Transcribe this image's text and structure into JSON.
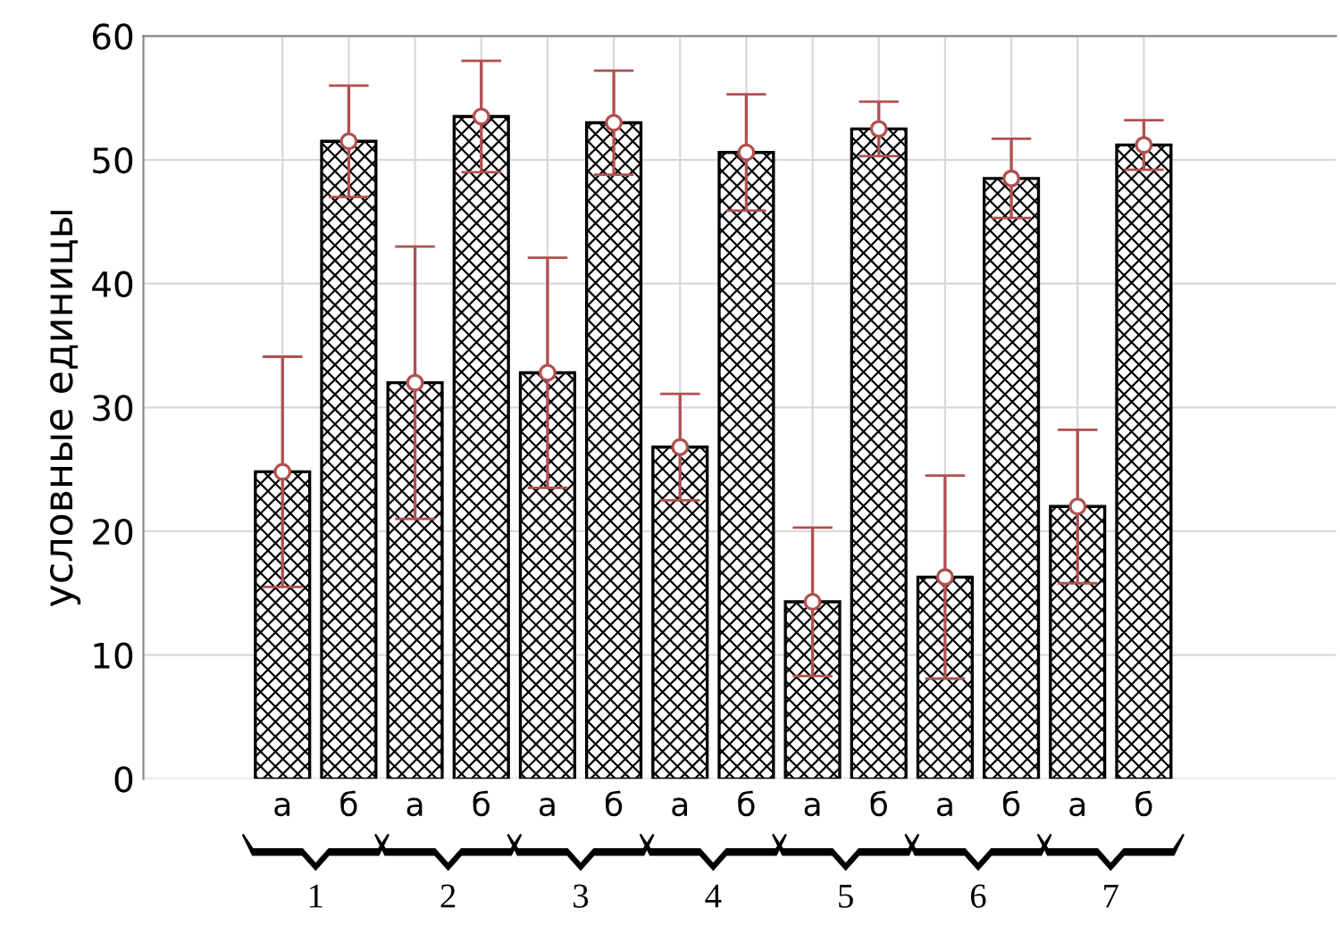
{
  "chart_data": {
    "type": "bar",
    "ylabel": "условные единицы",
    "categories": [
      "а",
      "б",
      "а",
      "б",
      "а",
      "б",
      "а",
      "б",
      "а",
      "б",
      "а",
      "б",
      "а",
      "б"
    ],
    "series": [
      {
        "color": "#000000",
        "values": [
          24.8,
          51.5,
          32,
          53.5,
          32.8,
          53,
          26.8,
          50.6,
          14.3,
          52.5,
          16.3,
          48.5,
          22,
          51.2
        ],
        "errors": [
          9.3,
          4.5,
          11,
          4.5,
          9.3,
          4.2,
          4.3,
          4.7,
          6,
          2.2,
          8.2,
          3.2,
          6.2,
          2
        ]
      },
      {
        "type": "scatter",
        "color": "#ffffff",
        "marker": "circle",
        "values": [
          24.8,
          51.5,
          32,
          53.5,
          32.8,
          53,
          26.8,
          50.6,
          14.3,
          52.5,
          16.3,
          48.5,
          22,
          51.2
        ]
      }
    ],
    "annotations": [
      "1",
      "2",
      "3",
      "4",
      "5",
      "6",
      "7"
    ],
    "ylim": [
      0,
      60
    ],
    "yticks": [
      0,
      10,
      20,
      30,
      40,
      50,
      60
    ],
    "grid": true
  }
}
